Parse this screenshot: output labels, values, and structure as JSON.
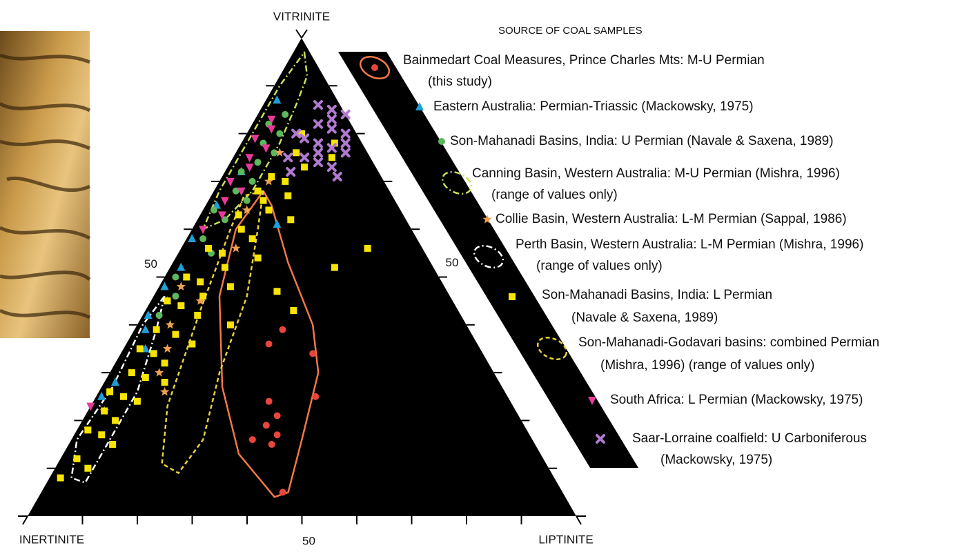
{
  "chart_data": {
    "type": "ternary",
    "legend_title": "SOURCE OF COAL SAMPLES",
    "axes": {
      "vitrinite": {
        "label": "VITRINITE",
        "ticks": [
          50
        ],
        "minor_ticks": [
          10,
          20,
          30,
          40,
          60,
          70,
          80,
          90
        ]
      },
      "inertinite": {
        "label": "INERTINITE",
        "ticks": [
          50
        ],
        "minor_ticks": [
          10,
          20,
          30,
          40,
          60,
          70,
          80,
          90
        ]
      },
      "liptinite": {
        "label": "LIPTINITE",
        "ticks": [
          50
        ],
        "minor_ticks": [
          10,
          20,
          30,
          40,
          60,
          70,
          80,
          90
        ]
      }
    },
    "series": [
      {
        "name": [
          "Bainmedart Coal Measures, Prince Charles Mts: M-U Permian",
          "(this study)"
        ],
        "color": "#e8463c",
        "marker": "circle",
        "vitrinite": [
          39,
          34,
          36,
          25,
          21,
          24,
          19,
          17,
          15,
          16,
          5
        ],
        "liptinite": [
          27,
          35,
          26,
          40,
          35,
          32,
          34,
          37,
          37,
          33,
          44
        ],
        "outline_color": "#f2784a",
        "dash": "solid",
        "outline": {
          "vitrinite": [
            68,
            60,
            46,
            27,
            13,
            4,
            5,
            16,
            30,
            40,
            53,
            65
          ],
          "liptinite": [
            9,
            8,
            12,
            22,
            32,
            43,
            45,
            42,
            38,
            32,
            21,
            12
          ]
        }
      },
      {
        "name": [
          "Eastern Australia: Permian-Triassic (Mackowsky, 1975)"
        ],
        "color": "#1e9fd8",
        "marker": "triangle",
        "vitrinite": [
          87,
          72,
          65,
          61,
          58,
          52,
          48,
          45,
          42,
          39,
          35,
          28,
          25
        ],
        "liptinite": [
          2,
          3,
          2,
          15,
          1,
          2,
          1,
          3,
          1,
          2,
          4,
          2,
          1
        ]
      },
      {
        "name": [
          "Son-Mahanadi Basins, India: U Permian (Navale & Saxena, 1989)"
        ],
        "color": "#5cb85c",
        "marker": "circle",
        "vitrinite": [
          84,
          82,
          80,
          78,
          76,
          74,
          72,
          70,
          68,
          66,
          64,
          62,
          58,
          55,
          50,
          46,
          42
        ],
        "liptinite": [
          5,
          3,
          6,
          4,
          7,
          5,
          3,
          6,
          4,
          7,
          2,
          5,
          3,
          6,
          2,
          4,
          3
        ]
      },
      {
        "name": [
          "Canning Basin, Western Australia: M-U Permian (Mishra, 1996)",
          "(range of values only)"
        ],
        "outline_color": "#c8e05a",
        "marker": "outline",
        "dash": "dash-dot",
        "outline": {
          "vitrinite": [
            97,
            92,
            86,
            78,
            68,
            62,
            60,
            68,
            80,
            90
          ],
          "liptinite": [
            2,
            5,
            6,
            7,
            7,
            5,
            2,
            1,
            1,
            1
          ]
        }
      },
      {
        "name": [
          "Collie Basin, Western Australia: L-M Permian (Sappal, 1986)"
        ],
        "color": "#f0a050",
        "marker": "star",
        "vitrinite": [
          76,
          70,
          64,
          56,
          48,
          45,
          40,
          35,
          30,
          26,
          22
        ],
        "liptinite": [
          8,
          9,
          8,
          10,
          4,
          9,
          6,
          8,
          9,
          12,
          3
        ]
      },
      {
        "name": [
          "Perth Basin, Western Australia: L-M Permian (Mishra, 1996)",
          "(range of values only)"
        ],
        "outline_color": "#ffffff",
        "marker": "outline",
        "dash": "dash-dot",
        "outline": {
          "vitrinite": [
            46,
            39,
            26,
            16,
            7,
            8,
            16,
            27,
            40
          ],
          "liptinite": [
            2,
            4,
            7,
            7,
            7,
            4,
            1,
            2,
            1
          ]
        }
      },
      {
        "name": [
          "Son-Mahanadi Basins, India: L Permian",
          "(Navale & Saxena, 1989)"
        ],
        "color": "#f7e400",
        "marker": "square",
        "vitrinite": [
          80,
          78,
          76,
          75,
          73,
          71,
          70,
          68,
          67,
          66,
          64,
          63,
          62,
          60,
          58,
          56,
          55,
          54,
          52,
          50,
          49,
          48,
          46,
          45,
          44,
          42,
          40,
          39,
          38,
          36,
          35,
          34,
          32,
          30,
          29,
          28,
          26,
          25,
          24,
          22,
          20,
          18,
          17,
          15,
          12,
          10,
          8,
          47,
          43,
          52,
          56
        ],
        "liptinite": [
          10,
          17,
          11,
          18,
          14,
          9,
          12,
          8,
          14,
          10,
          12,
          7,
          17,
          9,
          12,
          5,
          8,
          15,
          10,
          4,
          7,
          13,
          9,
          3,
          6,
          10,
          17,
          4,
          8,
          12,
          3,
          6,
          9,
          4,
          7,
          11,
          2,
          5,
          8,
          3,
          6,
          2,
          5,
          8,
          3,
          6,
          2,
          22,
          27,
          30,
          34
        ]
      },
      {
        "name": [
          "Son-Mahanadi-Godavari basins: combined Permian",
          "(Mishra, 1996) (range of values only)"
        ],
        "outline_color": "#e8d040",
        "marker": "outline",
        "dash": "dash",
        "outline": {
          "vitrinite": [
            68,
            60,
            46,
            30,
            16,
            9,
            11,
            23,
            43,
            60,
            67
          ],
          "liptinite": [
            9,
            12,
            17,
            20,
            24,
            23,
            19,
            14,
            10,
            7,
            6
          ]
        }
      },
      {
        "name": [
          "South Africa: L Permian (Mackowsky, 1975)"
        ],
        "color": "#e83a9a",
        "marker": "triangle-down",
        "vitrinite": [
          83,
          81,
          79,
          77,
          75,
          73,
          70,
          68,
          66,
          63,
          60,
          23
        ],
        "liptinite": [
          3,
          4,
          2,
          5,
          3,
          4,
          2,
          5,
          3,
          4,
          2,
          0
        ]
      },
      {
        "name": [
          "Saar-Lorraine coalfield: U Carboniferous",
          "(Mackowsky, 1975)"
        ],
        "color": "#b07ad0",
        "marker": "cross",
        "vitrinite": [
          86,
          85,
          84,
          82,
          81,
          80,
          79,
          78,
          77,
          76,
          75,
          74,
          73,
          72,
          71,
          83,
          80,
          78,
          76,
          75
        ],
        "liptinite": [
          10,
          13,
          16,
          12,
          15,
          18,
          11,
          14,
          17,
          20,
          13,
          16,
          19,
          12,
          21,
          14,
          9,
          19,
          15,
          10
        ]
      }
    ]
  }
}
